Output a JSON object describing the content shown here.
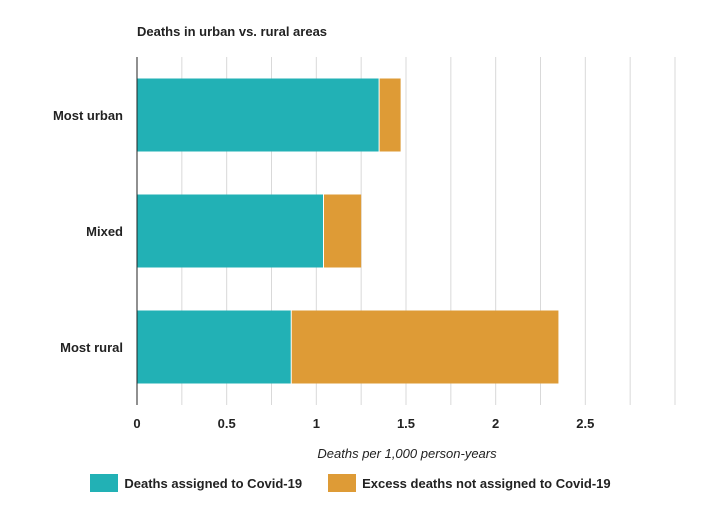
{
  "chart_data": {
    "type": "bar",
    "orientation": "horizontal",
    "stacked": true,
    "title": "Deaths in urban vs. rural areas",
    "xlabel": "Deaths per 1,000 person-years",
    "ylabel": "",
    "xlim": [
      0,
      3.0
    ],
    "xticks": [
      0,
      0.5,
      1,
      1.5,
      2,
      2.5
    ],
    "xtick_labels": [
      "0",
      "0.5",
      "1",
      "1.5",
      "2",
      "2.5"
    ],
    "grid": true,
    "categories": [
      "Most urban",
      "Mixed",
      "Most rural"
    ],
    "series": [
      {
        "name": "Deaths assigned to Covid-19",
        "color": "#22b1b5",
        "values": [
          1.35,
          1.04,
          0.86
        ]
      },
      {
        "name": "Excess deaths not assigned to Covid-19",
        "color": "#de9b36",
        "values": [
          0.12,
          0.21,
          1.49
        ]
      }
    ],
    "legend_position": "bottom"
  }
}
